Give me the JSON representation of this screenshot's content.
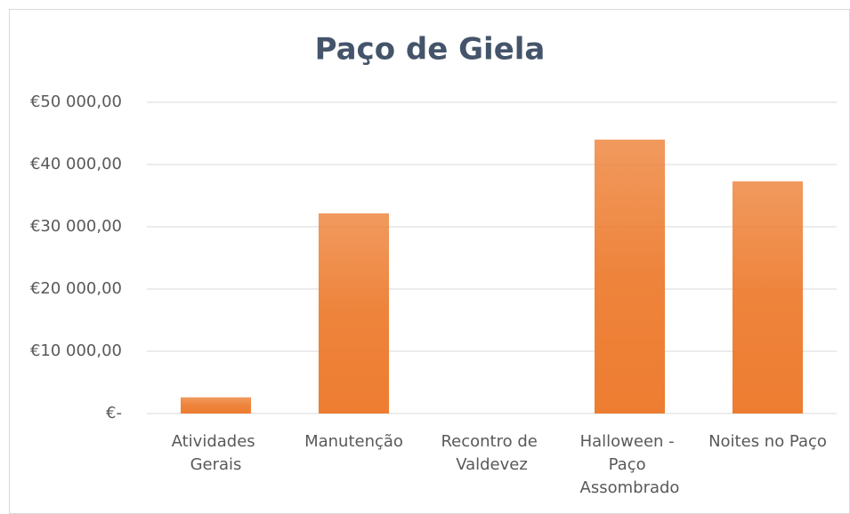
{
  "chart_data": {
    "type": "bar",
    "title": "Paço de Giela",
    "categories": [
      "Atividades Gerais",
      "Manutenção",
      "Recontro de Valdevez",
      "Halloween - Paço Assombrado",
      "Noites no Paço"
    ],
    "values": [
      2600,
      32150,
      0,
      44000,
      37300
    ],
    "color": "#ed7d31",
    "ylim": [
      0,
      50000
    ],
    "yticks": [
      {
        "value": 0,
        "label": "€-"
      },
      {
        "value": 10000,
        "label": "€10 000,00"
      },
      {
        "value": 20000,
        "label": "€20 000,00"
      },
      {
        "value": 30000,
        "label": "€30 000,00"
      },
      {
        "value": 40000,
        "label": "€40 000,00"
      },
      {
        "value": 50000,
        "label": "€50 000,00"
      }
    ],
    "grid": true
  }
}
